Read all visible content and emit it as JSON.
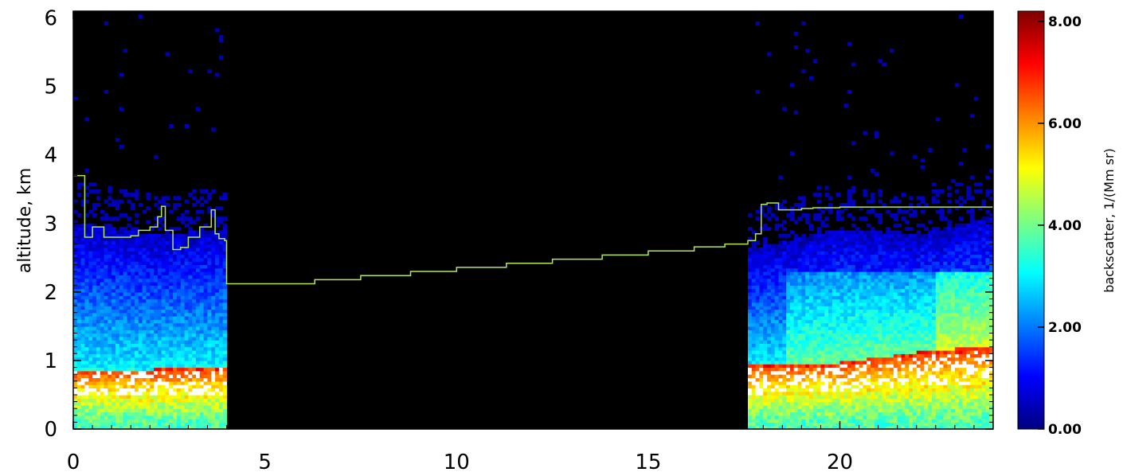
{
  "chart_data": {
    "type": "heatmap",
    "title": "",
    "xlabel": "",
    "ylabel": "altitude, km",
    "xlim": [
      0,
      24
    ],
    "ylim": [
      0,
      6.1
    ],
    "x_ticks": [
      "0",
      "5",
      "10",
      "15",
      "20"
    ],
    "y_ticks": [
      "0",
      "1",
      "2",
      "3",
      "4",
      "5",
      "6"
    ],
    "colorbar": {
      "label": "backscatter, 1/(Mm sr)",
      "range": [
        0,
        8.2
      ],
      "ticks": [
        "0.00",
        "2.00",
        "4.00",
        "6.00",
        "8.00"
      ],
      "colors": [
        "#00007f",
        "#0000ff",
        "#007fff",
        "#00ffff",
        "#7fff7f",
        "#ffff00",
        "#ff7f00",
        "#ff0000",
        "#7f0000"
      ]
    },
    "no_data_intervals_hours": [
      [
        4.05,
        17.5
      ]
    ],
    "layer_top_line": {
      "color": "#b4e65a",
      "x": [
        0,
        0.3,
        0.5,
        0.8,
        1.0,
        1.5,
        1.7,
        2.0,
        2.2,
        2.3,
        2.4,
        2.6,
        2.8,
        3.0,
        3.3,
        3.6,
        3.7,
        3.8,
        3.95,
        4.0,
        5.0,
        6.3,
        7.5,
        8.8,
        10.0,
        11.3,
        12.5,
        13.8,
        15.0,
        16.2,
        17.0,
        17.6,
        17.8,
        17.95,
        18.1,
        18.4,
        19.0,
        19.3,
        20.0,
        22.0,
        24.0
      ],
      "y": [
        3.7,
        2.8,
        2.95,
        2.8,
        2.8,
        2.82,
        2.9,
        2.95,
        3.1,
        3.25,
        2.9,
        2.62,
        2.65,
        2.8,
        2.95,
        3.2,
        2.85,
        2.78,
        2.75,
        2.12,
        2.12,
        2.18,
        2.24,
        2.3,
        2.36,
        2.42,
        2.48,
        2.54,
        2.6,
        2.66,
        2.7,
        2.75,
        2.85,
        3.28,
        3.3,
        3.2,
        3.22,
        3.23,
        3.24,
        3.24,
        3.24
      ]
    },
    "profiles": [
      {
        "x": 0.0,
        "top_km": 3.0,
        "bl_top_km": 0.85
      },
      {
        "x": 2.0,
        "top_km": 2.8,
        "bl_top_km": 0.85
      },
      {
        "x": 3.9,
        "top_km": 2.9,
        "bl_top_km": 0.9
      },
      {
        "x": 17.5,
        "top_km": 2.6,
        "bl_top_km": 0.9
      },
      {
        "x": 20.0,
        "top_km": 2.9,
        "bl_top_km": 0.95
      },
      {
        "x": 22.0,
        "top_km": 2.8,
        "bl_top_km": 1.1
      },
      {
        "x": 24.0,
        "top_km": 3.1,
        "bl_top_km": 1.2
      }
    ]
  }
}
